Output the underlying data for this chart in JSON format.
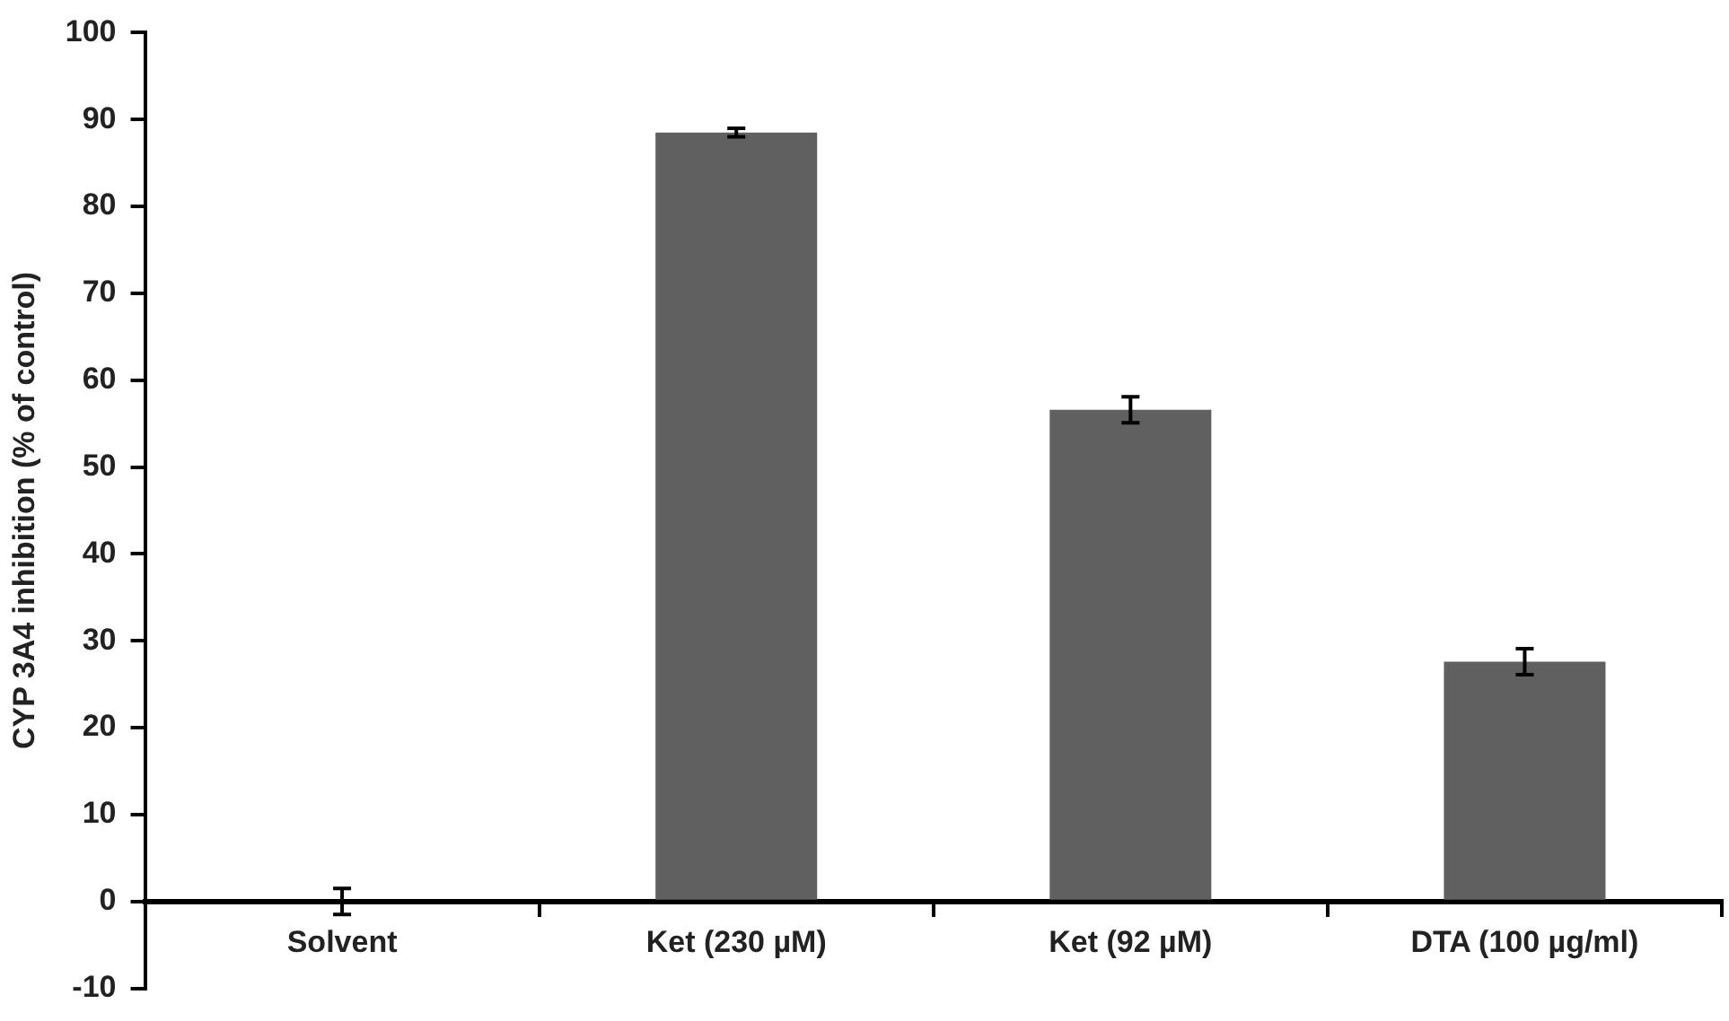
{
  "chart_data": {
    "type": "bar",
    "ylabel": "CYP 3A4 inhibition (% of control)",
    "categories": [
      "Solvent",
      "Ket (230 µM)",
      "Ket (92 µM)",
      "DTA (100 µg/ml)"
    ],
    "values": [
      0,
      88.5,
      56.6,
      27.6
    ],
    "errors": [
      1.5,
      0.5,
      1.5,
      1.5
    ],
    "color": "#606060",
    "ylim": [
      -10,
      100
    ],
    "yticks": [
      -10,
      0,
      10,
      20,
      30,
      40,
      50,
      60,
      70,
      80,
      90,
      100
    ],
    "grid": false,
    "legend": false
  }
}
